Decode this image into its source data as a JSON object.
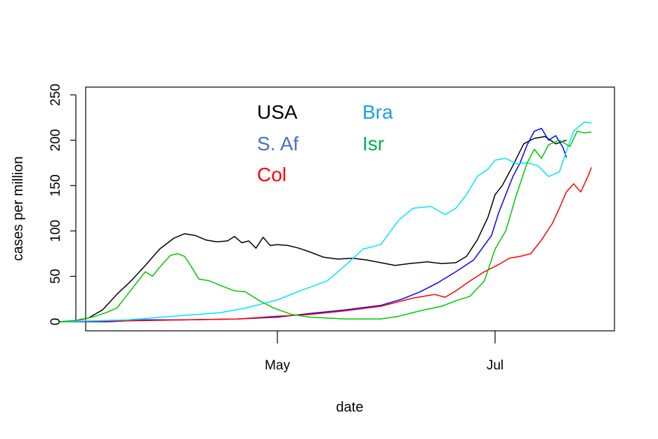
{
  "chart_data": {
    "type": "line",
    "xlabel": "date",
    "ylabel": "cases per million",
    "ylim": [
      0,
      250
    ],
    "xlim": [
      "2020-03-01",
      "2020-07-21"
    ],
    "yticks": [
      0,
      50,
      100,
      150,
      200,
      250
    ],
    "xticks": [
      {
        "date": "2020-05-01",
        "label": "May"
      },
      {
        "date": "2020-07-01",
        "label": "Jul"
      }
    ],
    "legend_placement": "top-center",
    "series": [
      {
        "name": "USA",
        "color": "#000000",
        "points": [
          [
            "2020-03-01",
            0
          ],
          [
            "2020-03-05",
            1
          ],
          [
            "2020-03-09",
            4
          ],
          [
            "2020-03-13",
            13
          ],
          [
            "2020-03-17",
            30
          ],
          [
            "2020-03-21",
            45
          ],
          [
            "2020-03-25",
            62
          ],
          [
            "2020-03-29",
            80
          ],
          [
            "2020-04-02",
            92
          ],
          [
            "2020-04-05",
            97
          ],
          [
            "2020-04-08",
            95
          ],
          [
            "2020-04-11",
            90
          ],
          [
            "2020-04-14",
            88
          ],
          [
            "2020-04-17",
            89
          ],
          [
            "2020-04-19",
            94
          ],
          [
            "2020-04-21",
            87
          ],
          [
            "2020-04-23",
            89
          ],
          [
            "2020-04-25",
            81
          ],
          [
            "2020-04-27",
            93
          ],
          [
            "2020-04-29",
            84
          ],
          [
            "2020-05-01",
            85
          ],
          [
            "2020-05-04",
            84
          ],
          [
            "2020-05-07",
            81
          ],
          [
            "2020-05-10",
            77
          ],
          [
            "2020-05-14",
            71
          ],
          [
            "2020-05-18",
            69
          ],
          [
            "2020-05-22",
            70
          ],
          [
            "2020-05-26",
            68
          ],
          [
            "2020-05-30",
            65
          ],
          [
            "2020-06-03",
            62
          ],
          [
            "2020-06-07",
            64
          ],
          [
            "2020-06-12",
            66
          ],
          [
            "2020-06-16",
            64
          ],
          [
            "2020-06-20",
            65
          ],
          [
            "2020-06-23",
            72
          ],
          [
            "2020-06-26",
            90
          ],
          [
            "2020-06-29",
            115
          ],
          [
            "2020-07-01",
            140
          ],
          [
            "2020-07-03",
            150
          ],
          [
            "2020-07-06",
            172
          ],
          [
            "2020-07-09",
            196
          ],
          [
            "2020-07-12",
            202
          ],
          [
            "2020-07-15",
            204
          ],
          [
            "2020-07-18",
            196
          ],
          [
            "2020-07-21",
            200
          ]
        ]
      },
      {
        "name": "S. Af",
        "color": "#0000ff",
        "points": [
          [
            "2020-03-01",
            0
          ],
          [
            "2020-03-15",
            0
          ],
          [
            "2020-03-25",
            2
          ],
          [
            "2020-04-05",
            2
          ],
          [
            "2020-04-20",
            3
          ],
          [
            "2020-05-01",
            5
          ],
          [
            "2020-05-10",
            9
          ],
          [
            "2020-05-20",
            13
          ],
          [
            "2020-05-30",
            18
          ],
          [
            "2020-06-05",
            25
          ],
          [
            "2020-06-10",
            33
          ],
          [
            "2020-06-15",
            43
          ],
          [
            "2020-06-20",
            55
          ],
          [
            "2020-06-25",
            68
          ],
          [
            "2020-06-30",
            95
          ],
          [
            "2020-07-02",
            120
          ],
          [
            "2020-07-04",
            140
          ],
          [
            "2020-07-06",
            160
          ],
          [
            "2020-07-08",
            175
          ],
          [
            "2020-07-10",
            195
          ],
          [
            "2020-07-12",
            210
          ],
          [
            "2020-07-14",
            213
          ],
          [
            "2020-07-16",
            200
          ],
          [
            "2020-07-18",
            205
          ],
          [
            "2020-07-20",
            192
          ],
          [
            "2020-07-21",
            181
          ]
        ]
      },
      {
        "name": "Col",
        "color": "#ff0000",
        "points": [
          [
            "2020-03-01",
            0
          ],
          [
            "2020-03-20",
            1
          ],
          [
            "2020-04-05",
            2
          ],
          [
            "2020-04-20",
            3
          ],
          [
            "2020-05-01",
            6
          ],
          [
            "2020-05-10",
            8
          ],
          [
            "2020-05-20",
            12
          ],
          [
            "2020-05-30",
            17
          ],
          [
            "2020-06-08",
            26
          ],
          [
            "2020-06-14",
            30
          ],
          [
            "2020-06-17",
            27
          ],
          [
            "2020-06-20",
            34
          ],
          [
            "2020-06-24",
            45
          ],
          [
            "2020-06-28",
            55
          ],
          [
            "2020-07-02",
            63
          ],
          [
            "2020-07-05",
            70
          ],
          [
            "2020-07-08",
            72
          ],
          [
            "2020-07-11",
            75
          ],
          [
            "2020-07-14",
            90
          ],
          [
            "2020-07-17",
            108
          ],
          [
            "2020-07-19",
            125
          ],
          [
            "2020-07-21",
            143
          ],
          [
            "2020-07-23",
            152
          ],
          [
            "2020-07-25",
            143
          ],
          [
            "2020-07-27",
            160
          ],
          [
            "2020-07-28",
            170
          ]
        ]
      },
      {
        "name": "Bra",
        "color": "#00e5ff",
        "points": [
          [
            "2020-03-01",
            0
          ],
          [
            "2020-03-20",
            2
          ],
          [
            "2020-04-05",
            7
          ],
          [
            "2020-04-15",
            10
          ],
          [
            "2020-04-22",
            15
          ],
          [
            "2020-05-01",
            24
          ],
          [
            "2020-05-08",
            35
          ],
          [
            "2020-05-15",
            45
          ],
          [
            "2020-05-20",
            62
          ],
          [
            "2020-05-25",
            80
          ],
          [
            "2020-05-30",
            85
          ],
          [
            "2020-06-04",
            112
          ],
          [
            "2020-06-08",
            125
          ],
          [
            "2020-06-13",
            127
          ],
          [
            "2020-06-17",
            118
          ],
          [
            "2020-06-20",
            125
          ],
          [
            "2020-06-23",
            140
          ],
          [
            "2020-06-26",
            160
          ],
          [
            "2020-06-29",
            168
          ],
          [
            "2020-07-01",
            178
          ],
          [
            "2020-07-04",
            180
          ],
          [
            "2020-07-07",
            174
          ],
          [
            "2020-07-10",
            175
          ],
          [
            "2020-07-13",
            172
          ],
          [
            "2020-07-16",
            160
          ],
          [
            "2020-07-19",
            165
          ],
          [
            "2020-07-21",
            188
          ],
          [
            "2020-07-23",
            210
          ],
          [
            "2020-07-26",
            220
          ],
          [
            "2020-07-28",
            219
          ]
        ]
      },
      {
        "name": "Isr",
        "color": "#00c800",
        "points": [
          [
            "2020-03-01",
            0
          ],
          [
            "2020-03-07",
            2
          ],
          [
            "2020-03-11",
            6
          ],
          [
            "2020-03-14",
            10
          ],
          [
            "2020-03-17",
            15
          ],
          [
            "2020-03-19",
            25
          ],
          [
            "2020-03-22",
            40
          ],
          [
            "2020-03-25",
            55
          ],
          [
            "2020-03-27",
            50
          ],
          [
            "2020-03-29",
            60
          ],
          [
            "2020-04-01",
            73
          ],
          [
            "2020-04-03",
            75
          ],
          [
            "2020-04-05",
            72
          ],
          [
            "2020-04-07",
            60
          ],
          [
            "2020-04-09",
            47
          ],
          [
            "2020-04-12",
            45
          ],
          [
            "2020-04-15",
            40
          ],
          [
            "2020-04-19",
            34
          ],
          [
            "2020-04-22",
            33
          ],
          [
            "2020-04-26",
            23
          ],
          [
            "2020-04-30",
            15
          ],
          [
            "2020-05-05",
            8
          ],
          [
            "2020-05-10",
            5
          ],
          [
            "2020-05-20",
            3
          ],
          [
            "2020-05-30",
            3
          ],
          [
            "2020-06-04",
            6
          ],
          [
            "2020-06-10",
            12
          ],
          [
            "2020-06-16",
            17
          ],
          [
            "2020-06-20",
            23
          ],
          [
            "2020-06-24",
            28
          ],
          [
            "2020-06-28",
            45
          ],
          [
            "2020-07-01",
            80
          ],
          [
            "2020-07-04",
            100
          ],
          [
            "2020-07-07",
            140
          ],
          [
            "2020-07-10",
            175
          ],
          [
            "2020-07-12",
            190
          ],
          [
            "2020-07-14",
            180
          ],
          [
            "2020-07-16",
            195
          ],
          [
            "2020-07-19",
            200
          ],
          [
            "2020-07-22",
            193
          ],
          [
            "2020-07-24",
            210
          ],
          [
            "2020-07-26",
            208
          ],
          [
            "2020-07-28",
            209
          ]
        ]
      }
    ]
  }
}
